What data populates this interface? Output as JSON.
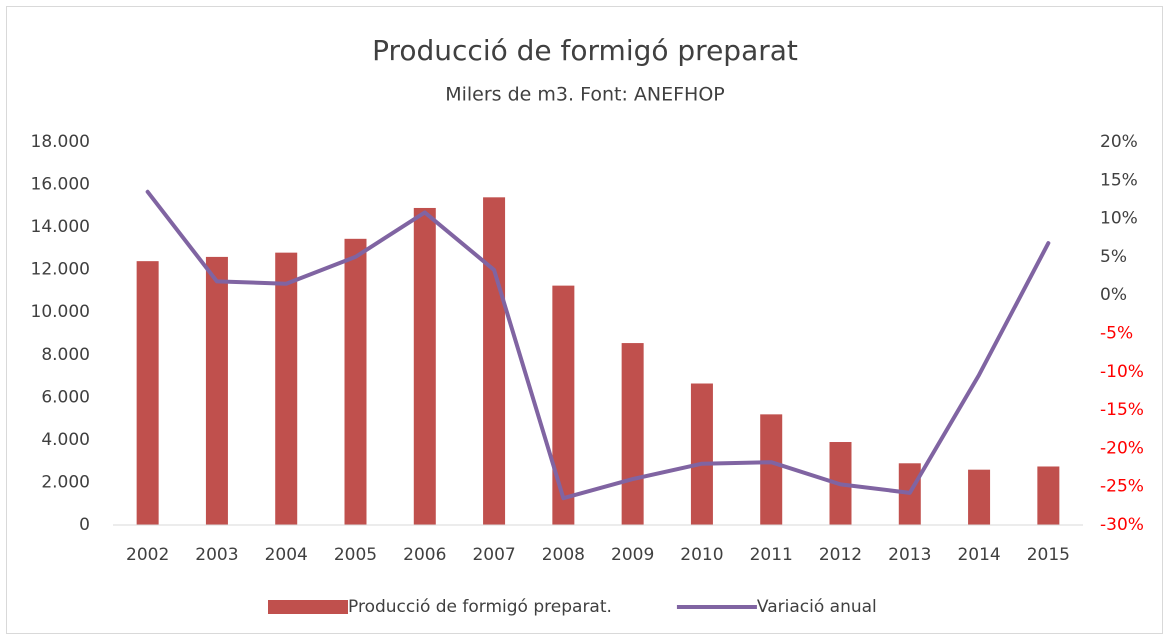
{
  "chart_data": {
    "type": "bar_line",
    "title": "Producció de formigó preparat",
    "subtitle": "Milers de m3. Font: ANEFHOP",
    "categories": [
      "2002",
      "2003",
      "2004",
      "2005",
      "2006",
      "2007",
      "2008",
      "2009",
      "2010",
      "2011",
      "2012",
      "2013",
      "2014",
      "2015"
    ],
    "series": [
      {
        "name": "Producció de formigó preparat.",
        "type": "bar",
        "color": "#c0504d",
        "values": [
          12400,
          12600,
          12800,
          13450,
          14900,
          15400,
          11250,
          8550,
          6650,
          5200,
          3900,
          2900,
          2600,
          2750
        ]
      },
      {
        "name": "Variació anual",
        "type": "line",
        "axis": "y2",
        "color": "#8064a2",
        "values": [
          13.5,
          1.8,
          1.5,
          5,
          10.8,
          3.3,
          -26.5,
          -24,
          -22,
          -21.8,
          -24.7,
          -25.8,
          -10.4,
          6.8
        ]
      }
    ],
    "ylim": [
      0,
      18000
    ],
    "yticks": [
      0,
      {
        "value": 2000,
        "label": "2.000"
      },
      {
        "value": 4000,
        "label": "4.000"
      },
      {
        "value": 6000,
        "label": "6.000"
      },
      {
        "value": 8000,
        "label": "8.000"
      },
      {
        "value": 10000,
        "label": "10.000"
      },
      {
        "value": 12000,
        "label": "12.000"
      },
      {
        "value": 14000,
        "label": "14.000"
      },
      {
        "value": 16000,
        "label": "16.000"
      },
      {
        "value": 18000,
        "label": "18.000"
      }
    ],
    "y2lim": [
      -30,
      20
    ],
    "y2ticks": [
      {
        "value": -30,
        "label": "-30%"
      },
      {
        "value": -25,
        "label": "-25%"
      },
      {
        "value": -20,
        "label": "-20%"
      },
      {
        "value": -15,
        "label": "-15%"
      },
      {
        "value": -10,
        "label": "-10%"
      },
      {
        "value": -5,
        "label": "-5%"
      },
      {
        "value": 0,
        "label": "0%"
      },
      {
        "value": 5,
        "label": "5%"
      },
      {
        "value": 10,
        "label": "10%"
      },
      {
        "value": 15,
        "label": "15%"
      },
      {
        "value": 20,
        "label": "20%"
      }
    ],
    "negative_y2tick_color": "#ff0000",
    "grid": false,
    "legend": "bottom"
  }
}
